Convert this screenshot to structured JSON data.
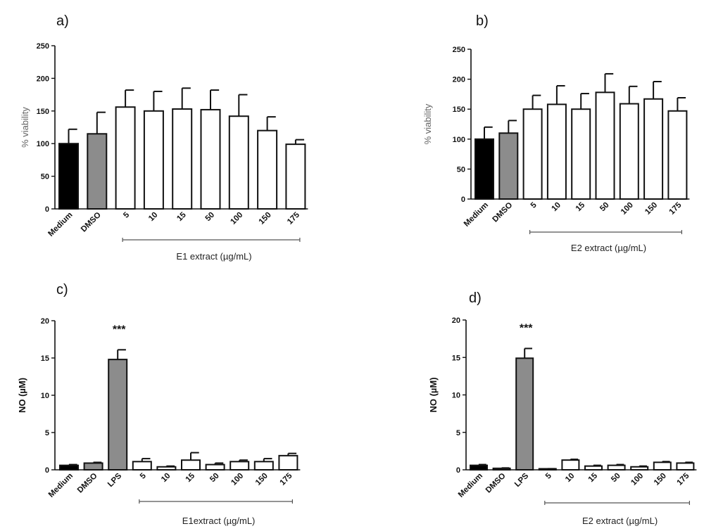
{
  "chart_data": [
    {
      "type": "bar",
      "panel": "a)",
      "ylabel": "% viability",
      "ylim": [
        0,
        250
      ],
      "yticks": [
        "0",
        "50",
        "100",
        "150",
        "200",
        "250"
      ],
      "categories": [
        "Medium",
        "DMSO",
        "5",
        "10",
        "15",
        "50",
        "100",
        "150",
        "175"
      ],
      "values": [
        100,
        115,
        156,
        150,
        153,
        152,
        142,
        120,
        99
      ],
      "errors": [
        22,
        33,
        26,
        30,
        32,
        30,
        33,
        21,
        7
      ],
      "colors": [
        "#000000",
        "#8c8c8c",
        "#ffffff",
        "#ffffff",
        "#ffffff",
        "#ffffff",
        "#ffffff",
        "#ffffff",
        "#ffffff"
      ],
      "group_label": "E1 extract (µg/mL)",
      "group_span": [
        2,
        8
      ]
    },
    {
      "type": "bar",
      "panel": "b)",
      "ylabel": "% viability",
      "ylim": [
        0,
        250
      ],
      "yticks": [
        "0",
        "50",
        "100",
        "150",
        "200",
        "250"
      ],
      "categories": [
        "Medium",
        "DMSO",
        "5",
        "10",
        "15",
        "50",
        "100",
        "150",
        "175"
      ],
      "values": [
        100,
        110,
        150,
        158,
        150,
        178,
        159,
        167,
        147
      ],
      "errors": [
        20,
        21,
        23,
        31,
        26,
        31,
        29,
        29,
        22
      ],
      "colors": [
        "#000000",
        "#8c8c8c",
        "#ffffff",
        "#ffffff",
        "#ffffff",
        "#ffffff",
        "#ffffff",
        "#ffffff",
        "#ffffff"
      ],
      "group_label": "E2 extract (µg/mL)",
      "group_span": [
        2,
        8
      ]
    },
    {
      "type": "bar",
      "panel": "c)",
      "ylabel": "NO (µM)",
      "ylim": [
        0,
        20
      ],
      "yticks": [
        "0",
        "5",
        "10",
        "15",
        "20"
      ],
      "categories": [
        "Medium",
        "DMSO",
        "LPS",
        "5",
        "10",
        "15",
        "50",
        "100",
        "150",
        "175"
      ],
      "values": [
        0.6,
        0.9,
        14.8,
        1.1,
        0.4,
        1.3,
        0.7,
        1.1,
        1.1,
        1.9
      ],
      "errors": [
        0.1,
        0.1,
        1.3,
        0.4,
        0.1,
        1.0,
        0.2,
        0.2,
        0.4,
        0.3
      ],
      "colors": [
        "#000000",
        "#8c8c8c",
        "#8c8c8c",
        "#ffffff",
        "#ffffff",
        "#ffffff",
        "#ffffff",
        "#ffffff",
        "#ffffff",
        "#ffffff"
      ],
      "annotation": {
        "index": 2,
        "text": "***"
      },
      "group_label": "E1extract (µg/mL)",
      "group_span": [
        3,
        9
      ]
    },
    {
      "type": "bar",
      "panel": "d)",
      "ylabel": "NO (µM)",
      "ylim": [
        0,
        20
      ],
      "yticks": [
        "0",
        "5",
        "10",
        "15",
        "20"
      ],
      "categories": [
        "Medium",
        "DMSO",
        "LPS",
        "5",
        "10",
        "15",
        "50",
        "100",
        "150",
        "175"
      ],
      "values": [
        0.6,
        0.2,
        14.9,
        0.1,
        1.3,
        0.5,
        0.6,
        0.4,
        1.0,
        0.9
      ],
      "errors": [
        0.1,
        0.05,
        1.3,
        0.05,
        0.1,
        0.1,
        0.1,
        0.1,
        0.1,
        0.1
      ],
      "colors": [
        "#000000",
        "#8c8c8c",
        "#8c8c8c",
        "#ffffff",
        "#ffffff",
        "#ffffff",
        "#ffffff",
        "#ffffff",
        "#ffffff",
        "#ffffff"
      ],
      "annotation": {
        "index": 2,
        "text": "***"
      },
      "group_label": "E2 extract (µg/mL)",
      "group_span": [
        3,
        9
      ]
    }
  ]
}
